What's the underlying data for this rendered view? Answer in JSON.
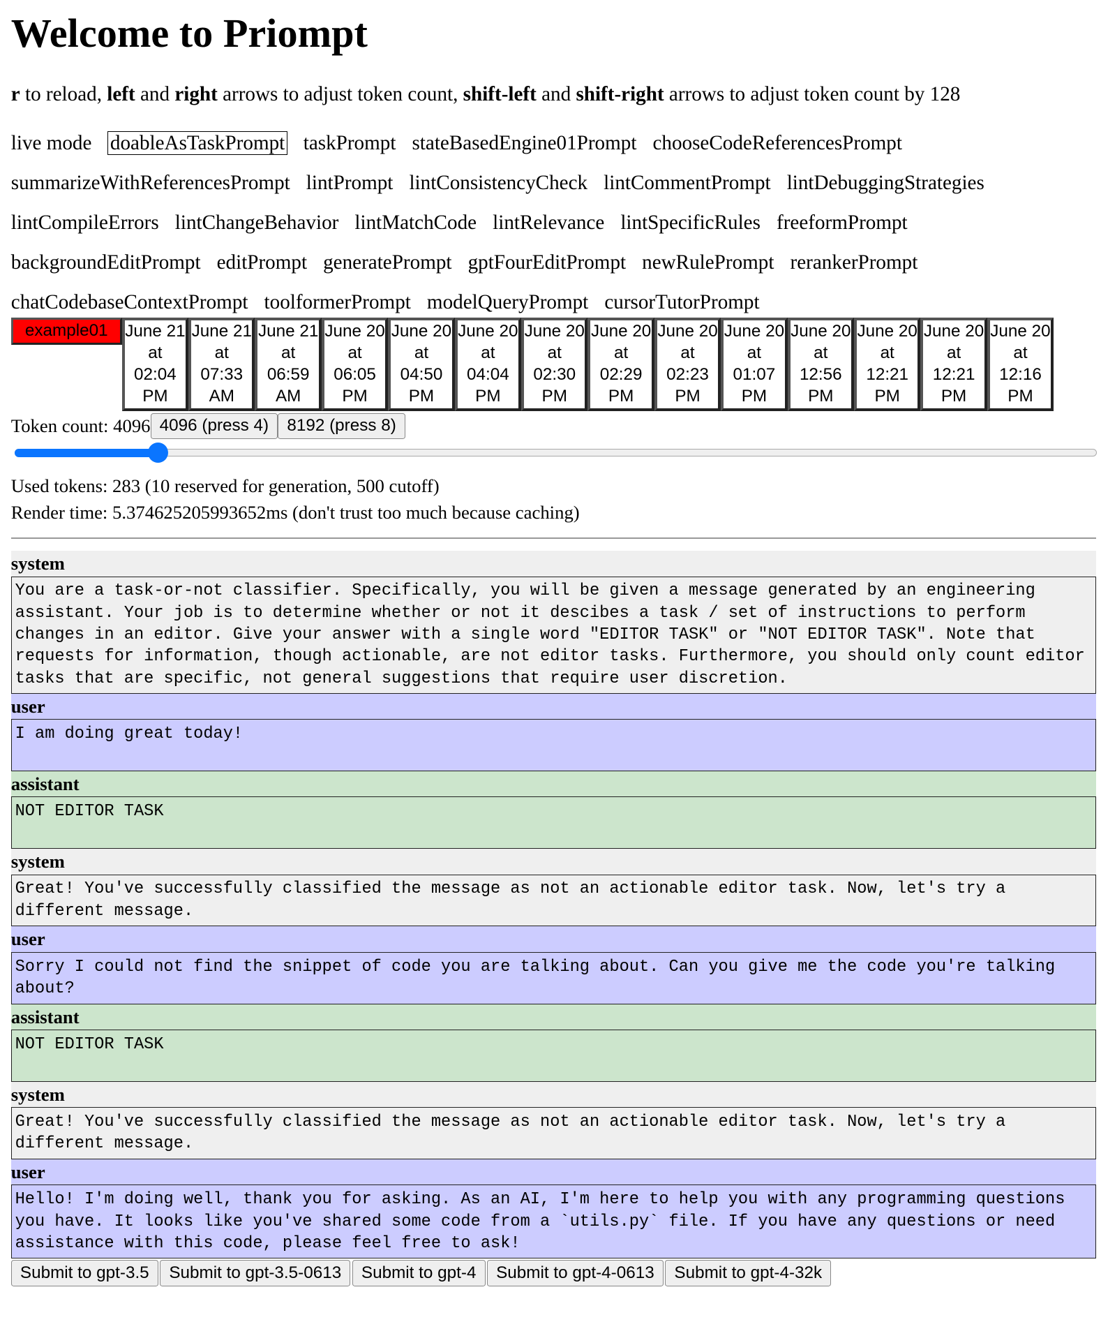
{
  "title": "Welcome to Priompt",
  "instructions": [
    {
      "b": "r",
      "t": " to reload, "
    },
    {
      "b": "left",
      "t": " and "
    },
    {
      "b": "right",
      "t": " arrows to adjust token count, "
    },
    {
      "b": "shift-left",
      "t": " and "
    },
    {
      "b": "shift-right",
      "t": " arrows to adjust token count by 128"
    }
  ],
  "prompts": [
    "live mode",
    "doableAsTaskPrompt",
    "taskPrompt",
    "stateBasedEngine01Prompt",
    "chooseCodeReferencesPrompt",
    "summarizeWithReferencesPrompt",
    "lintPrompt",
    "lintConsistencyCheck",
    "lintCommentPrompt",
    "lintDebuggingStrategies",
    "lintCompileErrors",
    "lintChangeBehavior",
    "lintMatchCode",
    "lintRelevance",
    "lintSpecificRules",
    "freeformPrompt",
    "backgroundEditPrompt",
    "editPrompt",
    "generatePrompt",
    "gptFourEditPrompt",
    "newRulePrompt",
    "rerankerPrompt",
    "chatCodebaseContextPrompt",
    "toolformerPrompt",
    "modelQueryPrompt",
    "cursorTutorPrompt"
  ],
  "selected_prompt": "doableAsTaskPrompt",
  "example": {
    "label": "example01",
    "color": "#ff0000"
  },
  "dates": [
    "June 21 at 02:04 PM",
    "June 21 at 07:33 AM",
    "June 21 at 06:59 AM",
    "June 20 at 06:05 PM",
    "June 20 at 04:50 PM",
    "June 20 at 04:04 PM",
    "June 20 at 02:30 PM",
    "June 20 at 02:29 PM",
    "June 20 at 02:23 PM",
    "June 20 at 01:07 PM",
    "June 20 at 12:56 PM",
    "June 20 at 12:21 PM",
    "June 20 at 12:21 PM",
    "June 20 at 12:16 PM"
  ],
  "token": {
    "label": "Token count: 4096",
    "btn4096": "4096 (press 4)",
    "btn8192": "8192 (press 8)",
    "slider_fraction": 0.133
  },
  "used_tokens": "Used tokens: 283 (10 reserved for generation, 500 cutoff)",
  "render_time": "Render time: 5.374625205993652ms (don't trust too much because caching)",
  "colors": {
    "system": "#efefef",
    "user": "#ccccff",
    "assistant": "#cce5cc",
    "slider": "#0a75ff"
  },
  "messages": [
    {
      "role": "system",
      "content": "You are a task-or-not classifier. Specifically, you will be given a message generated by an engineering assistant. Your job is to determine whether or not it descibes a task / set of instructions to perform changes in an editor. Give your answer with a single word \"EDITOR TASK\" or \"NOT EDITOR TASK\". Note that requests for information, though actionable, are not editor tasks. Furthermore, you should only count editor tasks that are specific, not general suggestions that require user discretion."
    },
    {
      "role": "user",
      "content": "I am doing great today!"
    },
    {
      "role": "assistant",
      "content": "NOT EDITOR TASK"
    },
    {
      "role": "system",
      "content": "Great! You've successfully classified the message as not an actionable editor task. Now, let's try a different message."
    },
    {
      "role": "user",
      "content": "Sorry I could not find the snippet of code you are talking about. Can you give me the code you're talking about?"
    },
    {
      "role": "assistant",
      "content": "NOT EDITOR TASK"
    },
    {
      "role": "system",
      "content": "Great! You've successfully classified the message as not an actionable editor task. Now, let's try a different message."
    },
    {
      "role": "user",
      "content": "Hello! I'm doing well, thank you for asking. As an AI, I'm here to help you with any programming questions you have. It looks like you've shared some code from a `utils.py` file. If you have any questions or need assistance with this code, please feel free to ask!"
    }
  ],
  "submit_buttons": [
    "Submit to gpt-3.5",
    "Submit to gpt-3.5-0613",
    "Submit to gpt-4",
    "Submit to gpt-4-0613",
    "Submit to gpt-4-32k"
  ]
}
